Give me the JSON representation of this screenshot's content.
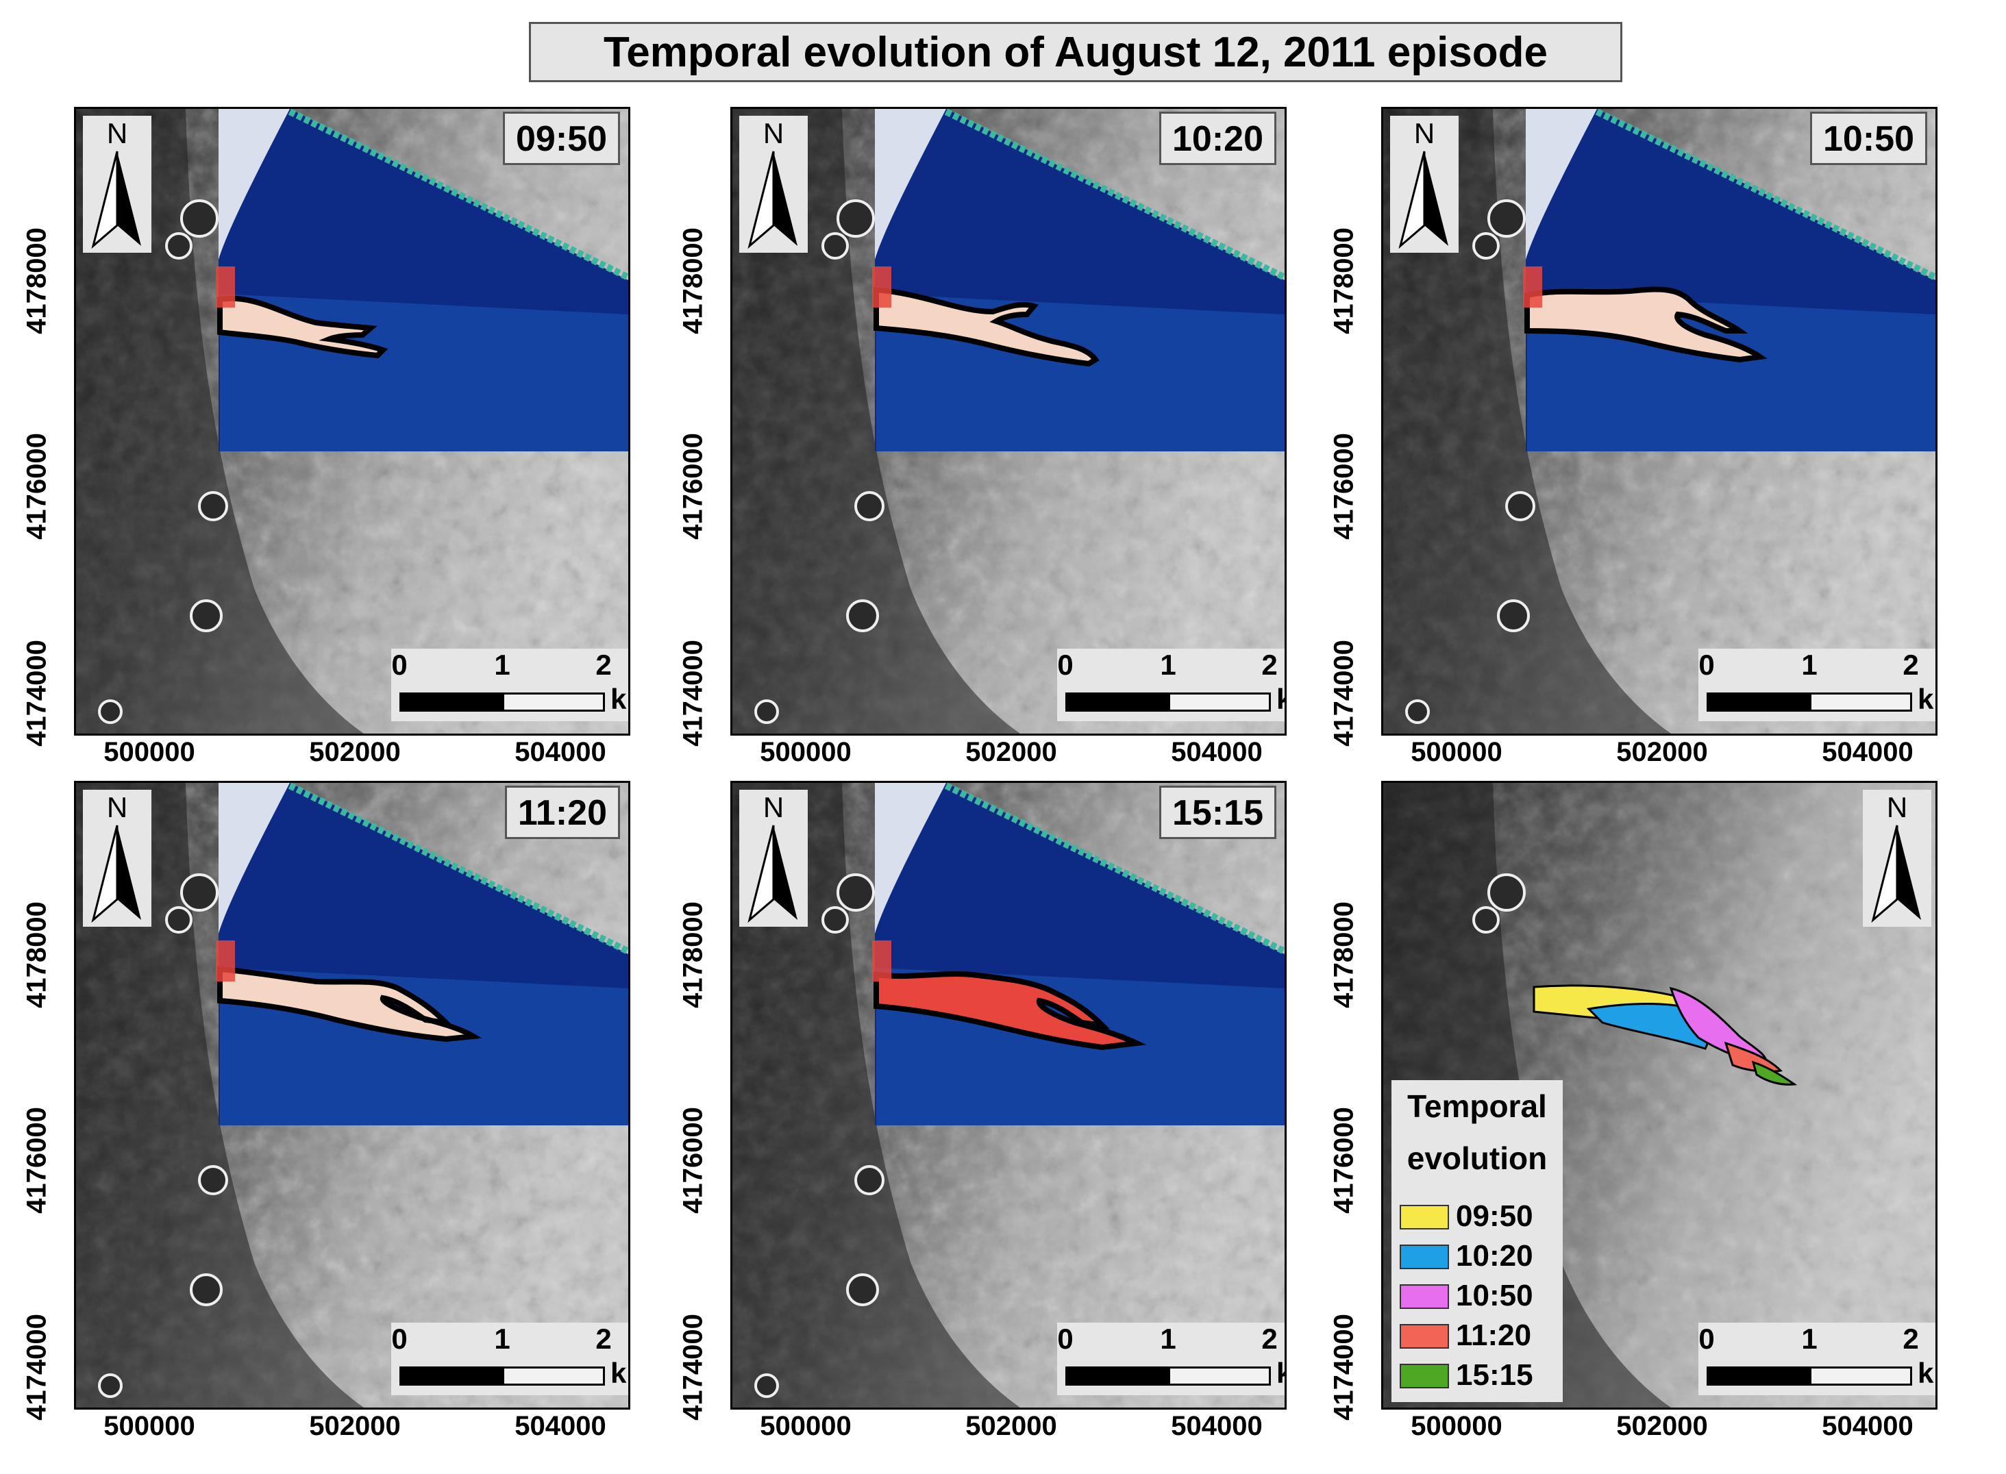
{
  "title": "Temporal evolution of August 12, 2011 episode",
  "panels": [
    {
      "time_label": "09:50",
      "has_thermal": true,
      "stage": 0
    },
    {
      "time_label": "10:20",
      "has_thermal": true,
      "stage": 1
    },
    {
      "time_label": "10:50",
      "has_thermal": true,
      "stage": 2
    },
    {
      "time_label": "11:20",
      "has_thermal": true,
      "stage": 3
    },
    {
      "time_label": "15:15",
      "has_thermal": true,
      "stage": 4
    },
    {
      "time_label": "",
      "has_thermal": false,
      "stage": 5
    }
  ],
  "axes": {
    "x_ticks": [
      "500000",
      "502000",
      "504000"
    ],
    "y_ticks": [
      "4178000",
      "4176000",
      "4174000"
    ]
  },
  "north_arrow": {
    "label": "N"
  },
  "scale_bar": {
    "ticks": [
      "0",
      "1",
      "2"
    ],
    "unit": "km"
  },
  "legend": {
    "title_line1": "Temporal",
    "title_line2": "evolution",
    "items": [
      {
        "label": "09:50",
        "color": "#f7e84a"
      },
      {
        "label": "10:20",
        "color": "#1e9fe6"
      },
      {
        "label": "10:50",
        "color": "#e86ef0"
      },
      {
        "label": "11:20",
        "color": "#f26455"
      },
      {
        "label": "15:15",
        "color": "#4fa824"
      }
    ]
  },
  "colors": {
    "flow_outline_fill": "#f5d6c4",
    "thermal_background": "#0c2d8a",
    "active_lava": "#e8453c"
  }
}
